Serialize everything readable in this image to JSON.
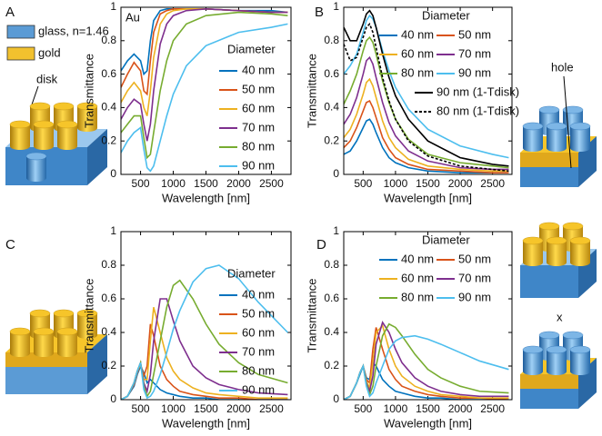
{
  "chart_data": [
    {
      "type": "line",
      "panel": "A",
      "annotation": "Au",
      "xlabel": "Wavelength [nm]",
      "ylabel": "Transmittance",
      "legend_title": "Diameter",
      "legend": "right",
      "legend_columns": 1,
      "xlim": [
        200,
        2800
      ],
      "ylim": [
        0,
        1
      ],
      "xticks": [
        500,
        1000,
        1500,
        2000,
        2500
      ],
      "yticks": [
        0,
        0.2,
        0.4,
        0.6,
        0.8,
        1
      ],
      "x": [
        200,
        300,
        400,
        500,
        550,
        600,
        650,
        700,
        800,
        900,
        1000,
        1200,
        1500,
        2000,
        2500,
        2750
      ],
      "series": [
        {
          "name": "40 nm",
          "color": "#0072bd",
          "values": [
            0.62,
            0.68,
            0.72,
            0.68,
            0.6,
            0.62,
            0.8,
            0.92,
            0.98,
            0.99,
            0.99,
            0.99,
            0.99,
            0.98,
            0.98,
            0.97
          ]
        },
        {
          "name": "50 nm",
          "color": "#d95319",
          "values": [
            0.52,
            0.6,
            0.67,
            0.62,
            0.5,
            0.48,
            0.68,
            0.85,
            0.96,
            0.98,
            0.99,
            0.99,
            0.99,
            0.98,
            0.97,
            0.97
          ]
        },
        {
          "name": "60 nm",
          "color": "#edb120",
          "values": [
            0.43,
            0.5,
            0.55,
            0.5,
            0.4,
            0.35,
            0.5,
            0.7,
            0.9,
            0.96,
            0.98,
            0.99,
            0.99,
            0.98,
            0.97,
            0.97
          ]
        },
        {
          "name": "70 nm",
          "color": "#7e2f8e",
          "values": [
            0.33,
            0.4,
            0.45,
            0.42,
            0.3,
            0.2,
            0.3,
            0.5,
            0.78,
            0.9,
            0.95,
            0.98,
            0.99,
            0.98,
            0.97,
            0.97
          ]
        },
        {
          "name": "80 nm",
          "color": "#77ac30",
          "values": [
            0.25,
            0.3,
            0.35,
            0.35,
            0.22,
            0.1,
            0.12,
            0.25,
            0.5,
            0.68,
            0.8,
            0.9,
            0.95,
            0.97,
            0.96,
            0.95
          ]
        },
        {
          "name": "90 nm",
          "color": "#4dbeee",
          "values": [
            0.13,
            0.2,
            0.25,
            0.28,
            0.15,
            0.04,
            0.02,
            0.05,
            0.2,
            0.35,
            0.48,
            0.65,
            0.77,
            0.85,
            0.88,
            0.9
          ]
        }
      ]
    },
    {
      "type": "line",
      "panel": "B",
      "xlabel": "Wavelength [nm]",
      "ylabel": "Transmittance",
      "legend_title": "Diameter",
      "legend": "upper-right",
      "legend_columns": 2,
      "xlim": [
        200,
        2800
      ],
      "ylim": [
        0,
        1
      ],
      "xticks": [
        500,
        1000,
        1500,
        2000,
        2500
      ],
      "yticks": [
        0,
        0.2,
        0.4,
        0.6,
        0.8,
        1
      ],
      "x": [
        200,
        300,
        400,
        500,
        550,
        600,
        650,
        700,
        800,
        900,
        1000,
        1200,
        1500,
        2000,
        2500,
        2750
      ],
      "series": [
        {
          "name": "40 nm",
          "color": "#0072bd",
          "values": [
            0.12,
            0.14,
            0.2,
            0.28,
            0.32,
            0.33,
            0.3,
            0.25,
            0.16,
            0.1,
            0.07,
            0.04,
            0.02,
            0.01,
            0.01,
            0.01
          ]
        },
        {
          "name": "50 nm",
          "color": "#d95319",
          "values": [
            0.16,
            0.2,
            0.28,
            0.38,
            0.43,
            0.44,
            0.4,
            0.34,
            0.22,
            0.15,
            0.1,
            0.06,
            0.03,
            0.02,
            0.01,
            0.01
          ]
        },
        {
          "name": "60 nm",
          "color": "#edb120",
          "values": [
            0.22,
            0.27,
            0.36,
            0.48,
            0.55,
            0.57,
            0.53,
            0.46,
            0.32,
            0.22,
            0.16,
            0.09,
            0.05,
            0.03,
            0.02,
            0.02
          ]
        },
        {
          "name": "70 nm",
          "color": "#7e2f8e",
          "values": [
            0.3,
            0.36,
            0.46,
            0.6,
            0.68,
            0.7,
            0.66,
            0.58,
            0.43,
            0.31,
            0.23,
            0.14,
            0.08,
            0.04,
            0.03,
            0.03
          ]
        },
        {
          "name": "80 nm",
          "color": "#77ac30",
          "values": [
            0.42,
            0.5,
            0.6,
            0.74,
            0.8,
            0.82,
            0.79,
            0.72,
            0.56,
            0.43,
            0.33,
            0.21,
            0.12,
            0.07,
            0.05,
            0.04
          ]
        },
        {
          "name": "90 nm",
          "color": "#4dbeee",
          "values": [
            0.6,
            0.65,
            0.72,
            0.85,
            0.92,
            0.95,
            0.93,
            0.88,
            0.74,
            0.62,
            0.52,
            0.39,
            0.27,
            0.17,
            0.12,
            0.1
          ]
        },
        {
          "name": "90 nm (1-Tdisk)",
          "color": "#000000",
          "dash": false,
          "values": [
            0.88,
            0.8,
            0.8,
            0.9,
            0.96,
            0.98,
            0.95,
            0.88,
            0.72,
            0.58,
            0.47,
            0.33,
            0.2,
            0.1,
            0.06,
            0.05
          ]
        },
        {
          "name": "80 nm (1-Tdisk)",
          "color": "#000000",
          "dash": true,
          "values": [
            0.78,
            0.68,
            0.7,
            0.82,
            0.88,
            0.9,
            0.85,
            0.76,
            0.58,
            0.44,
            0.33,
            0.2,
            0.11,
            0.05,
            0.03,
            0.02
          ]
        }
      ]
    },
    {
      "type": "line",
      "panel": "C",
      "xlabel": "Wavelength [nm]",
      "ylabel": "Transmittance",
      "legend_title": "Diameter",
      "legend": "right",
      "legend_columns": 1,
      "xlim": [
        200,
        2800
      ],
      "ylim": [
        0,
        1
      ],
      "xticks": [
        500,
        1000,
        1500,
        2000,
        2500
      ],
      "yticks": [
        0,
        0.2,
        0.4,
        0.6,
        0.8,
        1
      ],
      "x": [
        200,
        300,
        400,
        450,
        500,
        550,
        600,
        650,
        700,
        800,
        900,
        1000,
        1100,
        1300,
        1500,
        1700,
        2000,
        2300,
        2750
      ],
      "series": [
        {
          "name": "40 nm",
          "color": "#0072bd",
          "values": [
            0,
            0.02,
            0.08,
            0.15,
            0.2,
            0.16,
            0.1,
            0.12,
            0.1,
            0.06,
            0.04,
            0.03,
            0.02,
            0.01,
            0.01,
            0,
            0,
            0,
            0
          ]
        },
        {
          "name": "50 nm",
          "color": "#d95319",
          "values": [
            0,
            0.02,
            0.09,
            0.16,
            0.21,
            0.14,
            0.2,
            0.45,
            0.38,
            0.2,
            0.12,
            0.08,
            0.05,
            0.03,
            0.02,
            0.01,
            0.01,
            0,
            0
          ]
        },
        {
          "name": "60 nm",
          "color": "#edb120",
          "values": [
            0,
            0.02,
            0.1,
            0.17,
            0.21,
            0.12,
            0.12,
            0.35,
            0.55,
            0.4,
            0.25,
            0.17,
            0.12,
            0.07,
            0.04,
            0.03,
            0.02,
            0.01,
            0.01
          ]
        },
        {
          "name": "70 nm",
          "color": "#7e2f8e",
          "values": [
            0,
            0.02,
            0.1,
            0.17,
            0.22,
            0.1,
            0.05,
            0.15,
            0.35,
            0.6,
            0.6,
            0.47,
            0.35,
            0.2,
            0.13,
            0.09,
            0.06,
            0.04,
            0.03
          ]
        },
        {
          "name": "80 nm",
          "color": "#77ac30",
          "values": [
            0,
            0.02,
            0.1,
            0.17,
            0.22,
            0.08,
            0.02,
            0.05,
            0.15,
            0.35,
            0.55,
            0.68,
            0.71,
            0.6,
            0.45,
            0.33,
            0.22,
            0.15,
            0.1
          ]
        },
        {
          "name": "90 nm",
          "color": "#4dbeee",
          "values": [
            0,
            0.02,
            0.1,
            0.17,
            0.22,
            0.06,
            0.01,
            0.02,
            0.05,
            0.15,
            0.28,
            0.42,
            0.53,
            0.7,
            0.78,
            0.8,
            0.72,
            0.58,
            0.4
          ]
        }
      ]
    },
    {
      "type": "line",
      "panel": "D",
      "xlabel": "Wavelength [nm]",
      "ylabel": "Transmittance",
      "legend_title": "Diameter",
      "legend": "upper-right",
      "legend_columns": 2,
      "xlim": [
        200,
        2800
      ],
      "ylim": [
        0,
        1
      ],
      "xticks": [
        500,
        1000,
        1500,
        2000,
        2500
      ],
      "yticks": [
        0,
        0.2,
        0.4,
        0.6,
        0.8,
        1
      ],
      "x": [
        200,
        300,
        400,
        450,
        500,
        550,
        600,
        650,
        700,
        800,
        900,
        1000,
        1100,
        1300,
        1500,
        1700,
        2000,
        2300,
        2750
      ],
      "series": [
        {
          "name": "40 nm",
          "color": "#0072bd",
          "values": [
            0,
            0.02,
            0.1,
            0.15,
            0.2,
            0.13,
            0.12,
            0.22,
            0.2,
            0.12,
            0.08,
            0.05,
            0.04,
            0.02,
            0.01,
            0.01,
            0,
            0,
            0
          ]
        },
        {
          "name": "50 nm",
          "color": "#d95319",
          "values": [
            0,
            0.02,
            0.1,
            0.16,
            0.2,
            0.12,
            0.1,
            0.3,
            0.43,
            0.3,
            0.18,
            0.12,
            0.08,
            0.05,
            0.03,
            0.02,
            0.01,
            0.01,
            0
          ]
        },
        {
          "name": "60 nm",
          "color": "#edb120",
          "values": [
            0,
            0.02,
            0.1,
            0.16,
            0.2,
            0.11,
            0.07,
            0.22,
            0.4,
            0.44,
            0.3,
            0.2,
            0.14,
            0.08,
            0.05,
            0.03,
            0.02,
            0.01,
            0.01
          ]
        },
        {
          "name": "70 nm",
          "color": "#7e2f8e",
          "values": [
            0,
            0.02,
            0.1,
            0.16,
            0.2,
            0.1,
            0.05,
            0.14,
            0.33,
            0.46,
            0.4,
            0.3,
            0.22,
            0.13,
            0.08,
            0.05,
            0.03,
            0.02,
            0.02
          ]
        },
        {
          "name": "80 nm",
          "color": "#77ac30",
          "values": [
            0,
            0.02,
            0.1,
            0.16,
            0.2,
            0.09,
            0.03,
            0.08,
            0.2,
            0.38,
            0.45,
            0.43,
            0.38,
            0.27,
            0.18,
            0.13,
            0.08,
            0.05,
            0.04
          ]
        },
        {
          "name": "90 nm",
          "color": "#4dbeee",
          "values": [
            0,
            0.02,
            0.1,
            0.16,
            0.2,
            0.08,
            0.02,
            0.04,
            0.1,
            0.2,
            0.3,
            0.35,
            0.37,
            0.38,
            0.36,
            0.33,
            0.28,
            0.23,
            0.18
          ]
        }
      ]
    }
  ],
  "schematic": {
    "glass_label": "glass, n=1.46",
    "gold_label": "gold",
    "disk_label": "disk",
    "hole_label": "hole",
    "x_label": "x"
  }
}
